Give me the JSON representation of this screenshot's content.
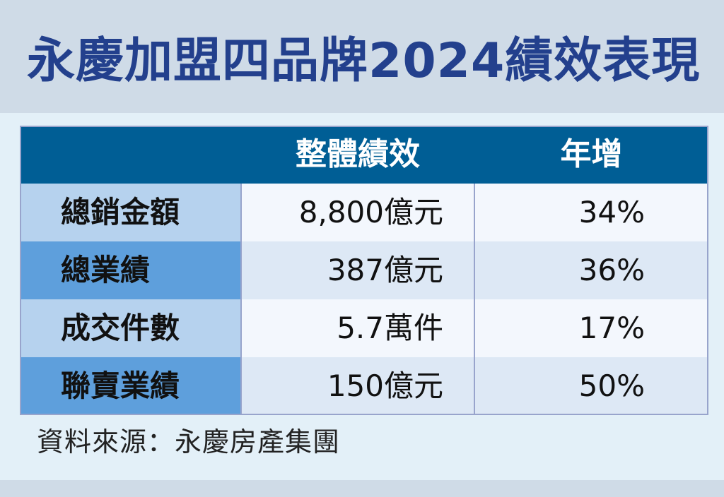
{
  "title": "永慶加盟四品牌2024績效表現",
  "colors": {
    "title_text": "#23408d",
    "header_bg": "#005e95",
    "label_light": "#b6d2ee",
    "label_dark": "#5e9fdc",
    "value_light": "#f3f7fd",
    "value_dark": "#dde8f5"
  },
  "table": {
    "headers": [
      "",
      "整體績效",
      "年增"
    ],
    "rows": [
      {
        "label": "總銷金額",
        "performance": "8,800億元",
        "growth": "34%"
      },
      {
        "label": "總業績",
        "performance": "387億元",
        "growth": "36%"
      },
      {
        "label": "成交件數",
        "performance": "5.7萬件",
        "growth": "17%"
      },
      {
        "label": "聯賣業績",
        "performance": "150億元",
        "growth": "50%"
      }
    ]
  },
  "source": "資料來源：永慶房產集團"
}
